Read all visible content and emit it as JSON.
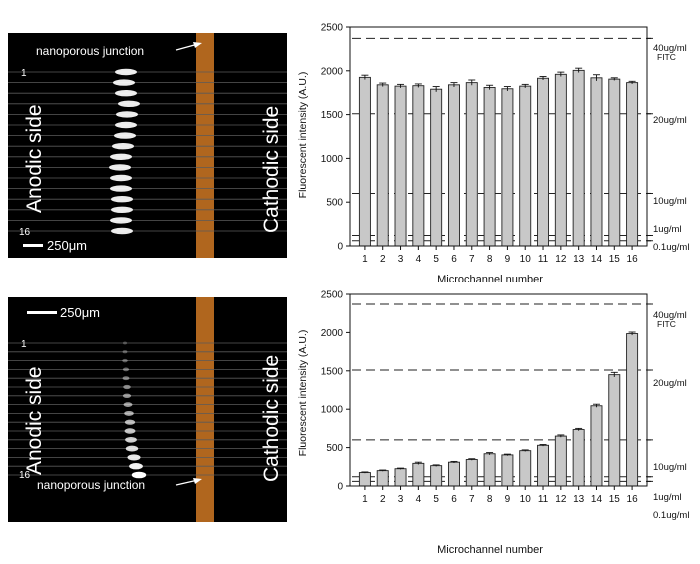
{
  "panels": [
    {
      "scale_bar": "250μm",
      "junction_label": "nanoporous junction",
      "anodic_label": "Anodic side",
      "cathodic_label": "Cathodic side",
      "channel_first": "1",
      "channel_last": "16",
      "colors": {
        "junction": "#b0661e",
        "channel_line": "#5a5a5a"
      }
    },
    {
      "scale_bar": "250μm",
      "junction_label": "nanoporous junction",
      "anodic_label": "Anodic side",
      "cathodic_label": "Cathodic side",
      "channel_first": "1",
      "channel_last": "16",
      "colors": {
        "junction": "#b0661e",
        "channel_line": "#5a5a5a"
      }
    }
  ],
  "chart_data": [
    {
      "type": "bar",
      "categories": [
        "1",
        "2",
        "3",
        "4",
        "5",
        "6",
        "7",
        "8",
        "9",
        "10",
        "11",
        "12",
        "13",
        "14",
        "15",
        "16"
      ],
      "values": [
        1925,
        1840,
        1825,
        1830,
        1790,
        1840,
        1865,
        1810,
        1795,
        1825,
        1915,
        1960,
        2005,
        1920,
        1905,
        1865
      ],
      "errors": [
        25,
        20,
        20,
        20,
        30,
        25,
        30,
        25,
        25,
        20,
        20,
        25,
        25,
        35,
        15,
        15
      ],
      "xlabel": "Microchannel number",
      "ylabel": "Fluorescent intensity (A.U.)",
      "ylim": [
        0,
        2500
      ],
      "yticks": [
        "0",
        "500",
        "1000",
        "1500",
        "2000",
        "2500"
      ],
      "reference_lines": [
        {
          "value": 2370,
          "label": "40ug/ml",
          "label2": "FITC"
        },
        {
          "value": 1510,
          "label": "20ug/ml",
          "label2": ""
        },
        {
          "value": 600,
          "label": "10ug/ml",
          "label2": ""
        },
        {
          "value": 120,
          "label": "1ug/ml",
          "label2": ""
        },
        {
          "value": 60,
          "label": "0.1ug/ml",
          "label2": ""
        }
      ],
      "colors": {
        "bar": "#c8c8c8",
        "bar_edge": "#222222",
        "ref_line": "#222222"
      }
    },
    {
      "type": "bar",
      "categories": [
        "1",
        "2",
        "3",
        "4",
        "5",
        "6",
        "7",
        "8",
        "9",
        "10",
        "11",
        "12",
        "13",
        "14",
        "15",
        "16"
      ],
      "values": [
        175,
        200,
        225,
        295,
        265,
        310,
        345,
        420,
        405,
        460,
        530,
        650,
        735,
        1045,
        1450,
        1985
      ],
      "errors": [
        8,
        8,
        8,
        15,
        10,
        10,
        10,
        15,
        10,
        10,
        10,
        15,
        15,
        20,
        30,
        20
      ],
      "xlabel": "Microchannel number",
      "ylabel": "Fluorescent intensity (A.U.)",
      "ylim": [
        0,
        2500
      ],
      "yticks": [
        "0",
        "500",
        "1000",
        "1500",
        "2000",
        "2500"
      ],
      "reference_lines": [
        {
          "value": 2370,
          "label": "40ug/ml",
          "label2": "FITC"
        },
        {
          "value": 1510,
          "label": "20ug/ml",
          "label2": ""
        },
        {
          "value": 600,
          "label": "10ug/ml",
          "label2": ""
        },
        {
          "value": 120,
          "label": "1ug/ml",
          "label2": ""
        },
        {
          "value": 60,
          "label": "0.1ug/ml",
          "label2": ""
        }
      ],
      "colors": {
        "bar": "#c8c8c8",
        "bar_edge": "#222222",
        "ref_line": "#222222"
      }
    }
  ]
}
